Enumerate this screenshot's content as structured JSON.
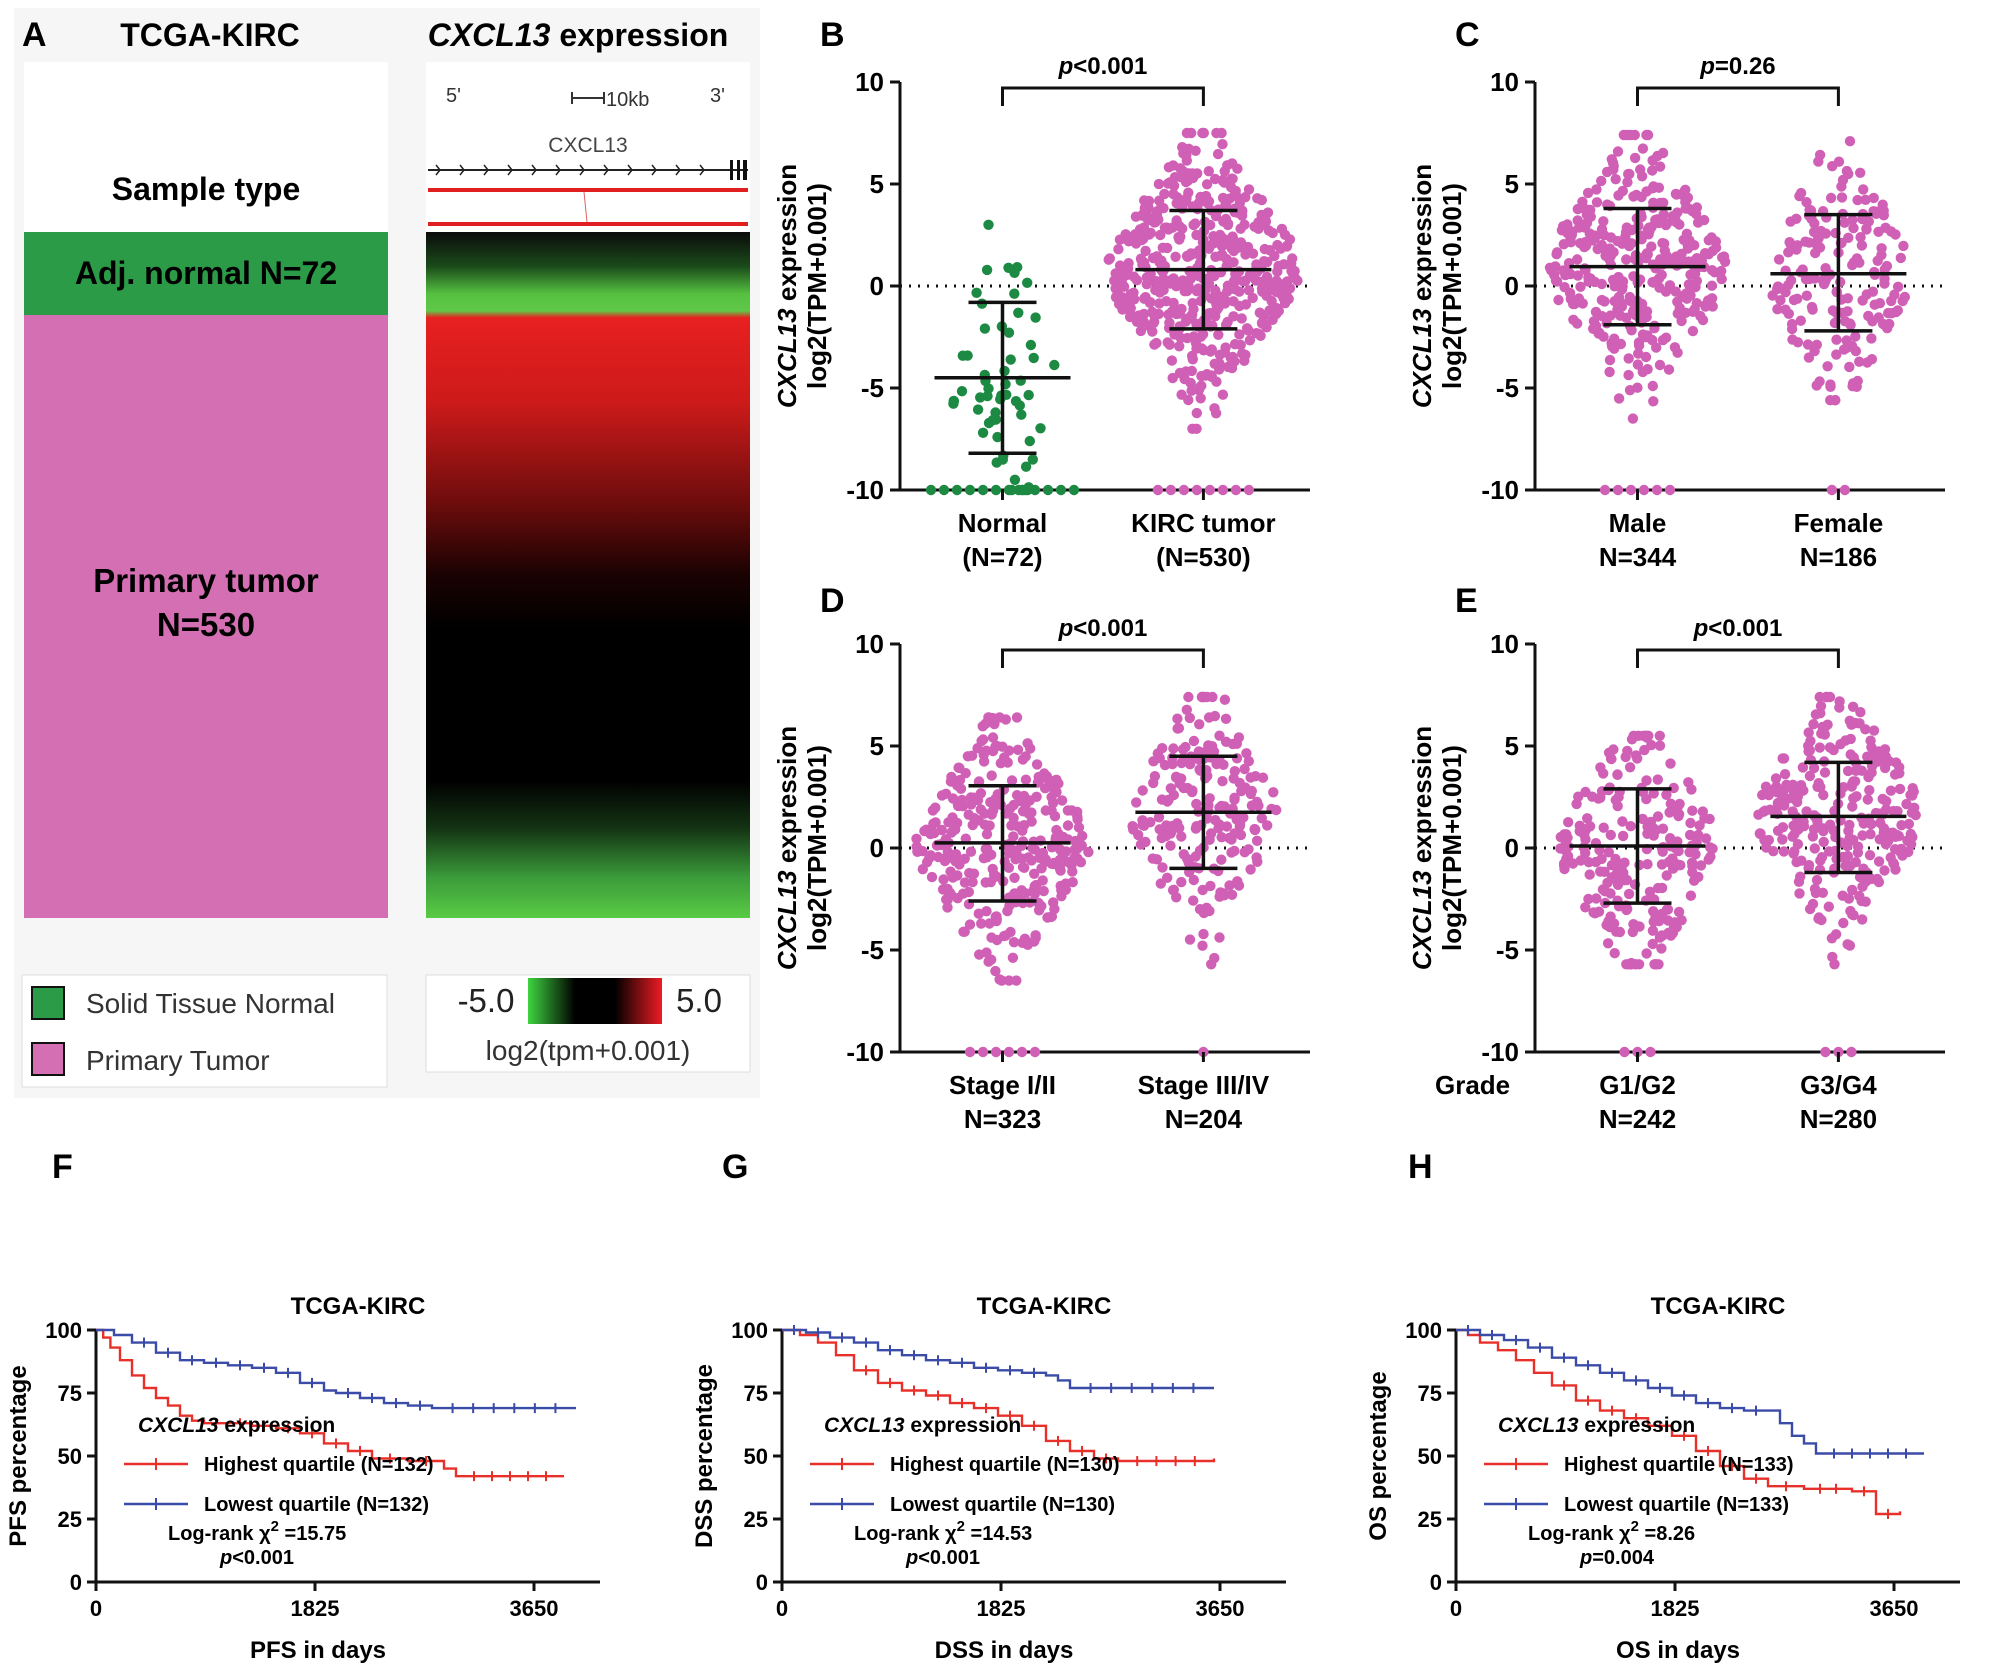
{
  "colors": {
    "normal_green": "#2b9b48",
    "tumor_pink": "#d56fb4",
    "dot_green": "#1d8a43",
    "dot_pink": "#d060b5",
    "km_red": "#e8302a",
    "km_blue": "#3b4ba8",
    "heat_red": "#e8202a",
    "heat_green": "#3bd03b"
  },
  "panel_a": {
    "letter": "A",
    "title_left": "TCGA-KIRC",
    "title_gene": "CXCL13",
    "title_right": " expression",
    "sample_type": "Sample type",
    "normal_label": "Adj. normal N=72",
    "tumor_label_1": "Primary tumor",
    "tumor_label_2": "N=530",
    "track_5prime": "5'",
    "track_3prime": "3'",
    "track_scale": "10kb",
    "track_gene": "CXCL13",
    "legend_normal": "Solid Tissue Normal",
    "legend_tumor": "Primary Tumor",
    "scale_min": "-5.0",
    "scale_max": "5.0",
    "scale_label": "log2(tpm+0.001)"
  },
  "chart_data": [
    {
      "panel": "B",
      "type": "scatter",
      "ylabel_gene": "CXCL13",
      "ylabel_rest": " expression",
      "ylabel_line2": "log2(TPM+0.001)",
      "ylim": [
        -10,
        10
      ],
      "yticks": [
        -10,
        -5,
        0,
        5,
        10
      ],
      "pvalue": "p<0.001",
      "xprefix": "",
      "groups": [
        {
          "label": "Normal",
          "n_label": "(N=72)",
          "mean": -4.5,
          "sd_low": -8.2,
          "sd_high": -0.8,
          "n_dots": 72,
          "range": [
            -10,
            3
          ],
          "floor_count": 12,
          "color": "green"
        },
        {
          "label": "KIRC tumor",
          "n_label": "(N=530)",
          "mean": 0.8,
          "sd_low": -2.1,
          "sd_high": 3.7,
          "n_dots": 530,
          "range": [
            -7,
            7.5
          ],
          "floor_count": 8,
          "color": "pink"
        }
      ]
    },
    {
      "panel": "C",
      "type": "scatter",
      "ylabel_gene": "CXCL13",
      "ylabel_rest": " expression",
      "ylabel_line2": "log2(TPM+0.001)",
      "ylim": [
        -10,
        10
      ],
      "yticks": [
        -10,
        -5,
        0,
        5,
        10
      ],
      "pvalue": "p=0.26",
      "xprefix": "",
      "groups": [
        {
          "label": "Male",
          "n_label": "N=344",
          "mean": 0.95,
          "sd_low": -1.9,
          "sd_high": 3.8,
          "n_dots": 344,
          "range": [
            -6.5,
            7.4
          ],
          "floor_count": 6,
          "color": "pink"
        },
        {
          "label": "Female",
          "n_label": "N=186",
          "mean": 0.6,
          "sd_low": -2.2,
          "sd_high": 3.5,
          "n_dots": 186,
          "range": [
            -5.6,
            7.1
          ],
          "floor_count": 2,
          "color": "pink"
        }
      ]
    },
    {
      "panel": "D",
      "type": "scatter",
      "ylabel_gene": "CXCL13",
      "ylabel_rest": " expression",
      "ylabel_line2": "log2(TPM+0.001)",
      "ylim": [
        -10,
        10
      ],
      "yticks": [
        -10,
        -5,
        0,
        5,
        10
      ],
      "pvalue": "p<0.001",
      "xprefix": "",
      "groups": [
        {
          "label": "Stage I/II",
          "n_label": "N=323",
          "mean": 0.25,
          "sd_low": -2.6,
          "sd_high": 3.05,
          "n_dots": 323,
          "range": [
            -6.5,
            6.4
          ],
          "floor_count": 6,
          "color": "pink"
        },
        {
          "label": "Stage III/IV",
          "n_label": "N=204",
          "mean": 1.75,
          "sd_low": -1.0,
          "sd_high": 4.5,
          "n_dots": 204,
          "range": [
            -5.7,
            7.4
          ],
          "floor_count": 1,
          "color": "pink"
        }
      ]
    },
    {
      "panel": "E",
      "type": "scatter",
      "ylabel_gene": "CXCL13",
      "ylabel_rest": " expression",
      "ylabel_line2": "log2(TPM+0.001)",
      "ylim": [
        -10,
        10
      ],
      "yticks": [
        -10,
        -5,
        0,
        5,
        10
      ],
      "pvalue": "p<0.001",
      "xprefix": "Grade",
      "groups": [
        {
          "label": "G1/G2",
          "n_label": "N=242",
          "mean": 0.1,
          "sd_low": -2.7,
          "sd_high": 2.9,
          "n_dots": 242,
          "range": [
            -5.7,
            5.5
          ],
          "floor_count": 3,
          "color": "pink"
        },
        {
          "label": "G3/G4",
          "n_label": "N=280",
          "mean": 1.55,
          "sd_low": -1.2,
          "sd_high": 4.2,
          "n_dots": 280,
          "range": [
            -5.7,
            7.4
          ],
          "floor_count": 3,
          "color": "pink"
        }
      ]
    },
    {
      "panel": "F",
      "type": "line",
      "title": "TCGA-KIRC",
      "xlabel": "PFS in days",
      "ylabel": "PFS percentage",
      "xlim": [
        0,
        4200
      ],
      "xticks": [
        0,
        1825,
        3650
      ],
      "ylim": [
        0,
        100
      ],
      "yticks": [
        0,
        25,
        50,
        75,
        100
      ],
      "legend_gene": "CXCL13",
      "legend_rest": " expression",
      "series": [
        {
          "name": "Highest quartile (N=132)",
          "color": "red",
          "points": [
            [
              0,
              100
            ],
            [
              60,
              97
            ],
            [
              120,
              93
            ],
            [
              200,
              88
            ],
            [
              300,
              82
            ],
            [
              400,
              77
            ],
            [
              500,
              73
            ],
            [
              600,
              70
            ],
            [
              700,
              66
            ],
            [
              800,
              64
            ],
            [
              900,
              63
            ],
            [
              1100,
              63
            ],
            [
              1300,
              62
            ],
            [
              1500,
              61
            ],
            [
              1700,
              59
            ],
            [
              1900,
              55
            ],
            [
              2100,
              52
            ],
            [
              2300,
              49
            ],
            [
              2600,
              48
            ],
            [
              2900,
              45
            ],
            [
              3000,
              42
            ],
            [
              3900,
              42
            ]
          ]
        },
        {
          "name": "Lowest quartile (N=132)",
          "color": "blue",
          "points": [
            [
              0,
              100
            ],
            [
              150,
              98
            ],
            [
              300,
              95
            ],
            [
              500,
              91
            ],
            [
              700,
              88
            ],
            [
              900,
              87
            ],
            [
              1100,
              86
            ],
            [
              1300,
              85
            ],
            [
              1500,
              83
            ],
            [
              1700,
              79
            ],
            [
              1900,
              76
            ],
            [
              2000,
              75
            ],
            [
              2200,
              73
            ],
            [
              2400,
              71
            ],
            [
              2600,
              70
            ],
            [
              2800,
              69
            ],
            [
              4000,
              69
            ]
          ]
        }
      ],
      "stat_line1": "Log-rank χ",
      "stat_sup": "2",
      "stat_rest": " =15.75",
      "stat_line2": "p<0.001"
    },
    {
      "panel": "G",
      "type": "line",
      "title": "TCGA-KIRC",
      "xlabel": "DSS in days",
      "ylabel": "DSS percentage",
      "xlim": [
        0,
        4200
      ],
      "xticks": [
        0,
        1825,
        3650
      ],
      "ylim": [
        0,
        100
      ],
      "yticks": [
        0,
        25,
        50,
        75,
        100
      ],
      "legend_gene": "CXCL13",
      "legend_rest": " expression",
      "series": [
        {
          "name": "Highest quartile (N=130)",
          "color": "red",
          "points": [
            [
              0,
              100
            ],
            [
              150,
              98
            ],
            [
              300,
              95
            ],
            [
              450,
              90
            ],
            [
              600,
              84
            ],
            [
              800,
              79
            ],
            [
              1000,
              76
            ],
            [
              1200,
              74
            ],
            [
              1400,
              71
            ],
            [
              1600,
              69
            ],
            [
              1800,
              66
            ],
            [
              2000,
              62
            ],
            [
              2200,
              56
            ],
            [
              2400,
              52
            ],
            [
              2600,
              49
            ],
            [
              2800,
              48
            ],
            [
              3600,
              48
            ],
            [
              3600,
              49
            ],
            [
              3600,
              48
            ],
            [
              3600,
              48
            ]
          ]
        },
        {
          "name": "Lowest quartile (N=130)",
          "color": "blue",
          "points": [
            [
              0,
              100
            ],
            [
              200,
              99
            ],
            [
              400,
              97
            ],
            [
              600,
              95
            ],
            [
              800,
              92
            ],
            [
              1000,
              90
            ],
            [
              1200,
              88
            ],
            [
              1400,
              87
            ],
            [
              1600,
              85
            ],
            [
              1800,
              84
            ],
            [
              2000,
              83
            ],
            [
              2200,
              82
            ],
            [
              2300,
              80
            ],
            [
              2400,
              77
            ],
            [
              3600,
              77
            ]
          ]
        }
      ],
      "stat_line1": "Log-rank χ",
      "stat_sup": "2",
      "stat_rest": " =14.53",
      "stat_line2": "p<0.001"
    },
    {
      "panel": "H",
      "type": "line",
      "title": "TCGA-KIRC",
      "xlabel": "OS in days",
      "ylabel": "OS percentage",
      "xlim": [
        0,
        4200
      ],
      "xticks": [
        0,
        1825,
        3650
      ],
      "ylim": [
        0,
        100
      ],
      "yticks": [
        0,
        25,
        50,
        75,
        100
      ],
      "legend_gene": "CXCL13",
      "legend_rest": " expression",
      "series": [
        {
          "name": "Highest quartile (N=133)",
          "color": "red",
          "points": [
            [
              0,
              100
            ],
            [
              100,
              98
            ],
            [
              200,
              95
            ],
            [
              350,
              92
            ],
            [
              500,
              88
            ],
            [
              650,
              83
            ],
            [
              800,
              78
            ],
            [
              1000,
              72
            ],
            [
              1200,
              68
            ],
            [
              1400,
              65
            ],
            [
              1600,
              62
            ],
            [
              1800,
              58
            ],
            [
              2000,
              52
            ],
            [
              2200,
              46
            ],
            [
              2400,
              41
            ],
            [
              2600,
              38
            ],
            [
              2900,
              37
            ],
            [
              3300,
              36
            ],
            [
              3500,
              36
            ],
            [
              3500,
              27
            ],
            [
              3700,
              27
            ],
            [
              3700,
              28
            ]
          ]
        },
        {
          "name": "Lowest quartile (N=133)",
          "color": "blue",
          "points": [
            [
              0,
              100
            ],
            [
              200,
              98
            ],
            [
              400,
              96
            ],
            [
              600,
              93
            ],
            [
              800,
              89
            ],
            [
              1000,
              86
            ],
            [
              1200,
              83
            ],
            [
              1400,
              80
            ],
            [
              1600,
              77
            ],
            [
              1800,
              74
            ],
            [
              2000,
              71
            ],
            [
              2200,
              69
            ],
            [
              2400,
              68
            ],
            [
              2600,
              68
            ],
            [
              2700,
              63
            ],
            [
              2800,
              58
            ],
            [
              2900,
              55
            ],
            [
              3000,
              51
            ],
            [
              3900,
              51
            ]
          ]
        }
      ],
      "stat_line1": "Log-rank χ",
      "stat_sup": "2",
      "stat_rest": " =8.26",
      "stat_line2": "p=0.004"
    }
  ]
}
